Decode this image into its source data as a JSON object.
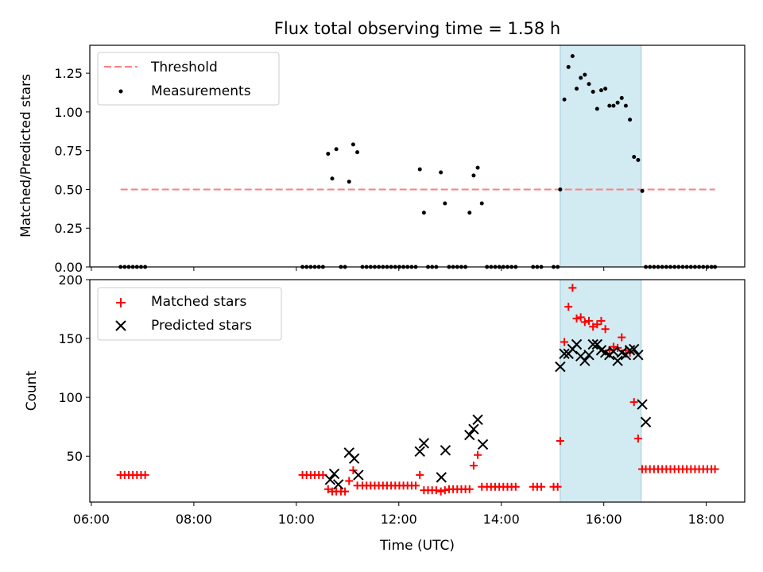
{
  "chart_data": {
    "type": "scatter",
    "title": "Flux total observing time = 1.58 h",
    "xlabel": "Time (UTC)",
    "x_tick_labels": [
      "06:00",
      "08:00",
      "10:00",
      "12:00",
      "14:00",
      "16:00",
      "18:00"
    ],
    "x_ticks_hours": [
      6,
      8,
      10,
      12,
      14,
      16,
      18
    ],
    "xlim_hours": [
      5.97,
      18.75
    ],
    "highlight_span_hours": [
      15.15,
      16.73
    ],
    "colors": {
      "threshold": "#ff7f7f",
      "measurements": "#000000",
      "matched": "#ff0000",
      "predicted": "#000000",
      "span": "#add8e6"
    },
    "top": {
      "ylabel": "Matched/Predicted stars",
      "ylim": [
        0,
        1.43
      ],
      "y_ticks": [
        "0.00",
        "0.25",
        "0.50",
        "0.75",
        "1.00",
        "1.25"
      ],
      "legend": [
        "Threshold",
        "Measurements"
      ],
      "threshold": {
        "value": 0.5,
        "x_range": [
          6.57,
          18.17
        ]
      },
      "measurements_x": [
        6.57,
        6.65,
        6.73,
        6.81,
        6.89,
        6.97,
        7.05,
        10.12,
        10.2,
        10.28,
        10.36,
        10.44,
        10.52,
        10.62,
        10.7,
        10.78,
        10.87,
        10.95,
        11.03,
        11.11,
        11.19,
        11.29,
        11.37,
        11.45,
        11.53,
        11.61,
        11.69,
        11.77,
        11.85,
        11.93,
        12.01,
        12.09,
        12.17,
        12.25,
        12.33,
        12.41,
        12.49,
        12.57,
        12.65,
        12.73,
        12.82,
        12.9,
        12.98,
        13.06,
        13.14,
        13.22,
        13.3,
        13.38,
        13.46,
        13.54,
        13.62,
        13.72,
        13.8,
        13.88,
        13.96,
        14.04,
        14.12,
        14.2,
        14.28,
        14.62,
        14.7,
        14.78,
        15.02,
        15.1,
        15.15,
        15.23,
        15.31,
        15.39,
        15.47,
        15.55,
        15.63,
        15.71,
        15.79,
        15.87,
        15.95,
        16.03,
        16.11,
        16.19,
        16.27,
        16.35,
        16.43,
        16.51,
        16.59,
        16.67,
        16.75,
        16.82,
        16.9,
        16.98,
        17.06,
        17.14,
        17.22,
        17.3,
        17.38,
        17.46,
        17.54,
        17.62,
        17.7,
        17.78,
        17.86,
        17.94,
        18.02,
        18.1,
        18.17
      ],
      "measurements_y": [
        0,
        0,
        0,
        0,
        0,
        0,
        0,
        0,
        0,
        0,
        0,
        0,
        0,
        0.73,
        0.57,
        0.76,
        0,
        0,
        0.55,
        0.79,
        0.74,
        0,
        0,
        0,
        0,
        0,
        0,
        0,
        0,
        0,
        0,
        0,
        0,
        0,
        0,
        0.63,
        0.35,
        0,
        0,
        0,
        0.61,
        0.41,
        0,
        0,
        0,
        0,
        0,
        0.35,
        0.59,
        0.64,
        0.41,
        0,
        0,
        0,
        0,
        0,
        0,
        0,
        0,
        0,
        0,
        0,
        0,
        0,
        0.5,
        1.08,
        1.29,
        1.36,
        1.15,
        1.22,
        1.24,
        1.18,
        1.13,
        1.02,
        1.14,
        1.15,
        1.04,
        1.04,
        1.06,
        1.09,
        1.04,
        0.95,
        0.71,
        0.69,
        0.49,
        0,
        0,
        0,
        0,
        0,
        0,
        0,
        0,
        0,
        0,
        0,
        0,
        0,
        0,
        0,
        0,
        0,
        0
      ]
    },
    "bottom": {
      "ylabel": "Count",
      "ylim": [
        11,
        200
      ],
      "y_ticks": [
        "50",
        "100",
        "150",
        "200"
      ],
      "legend": [
        "Matched stars",
        "Predicted stars"
      ],
      "matched_x": [
        6.57,
        6.65,
        6.73,
        6.81,
        6.89,
        6.97,
        7.05,
        10.12,
        10.2,
        10.28,
        10.36,
        10.44,
        10.52,
        10.62,
        10.7,
        10.78,
        10.87,
        10.95,
        11.03,
        11.11,
        11.19,
        11.29,
        11.37,
        11.45,
        11.53,
        11.61,
        11.69,
        11.77,
        11.85,
        11.93,
        12.01,
        12.09,
        12.17,
        12.25,
        12.33,
        12.41,
        12.49,
        12.57,
        12.65,
        12.73,
        12.82,
        12.9,
        12.98,
        13.06,
        13.14,
        13.22,
        13.3,
        13.38,
        13.46,
        13.54,
        13.62,
        13.72,
        13.8,
        13.88,
        13.96,
        14.04,
        14.12,
        14.2,
        14.28,
        14.62,
        14.7,
        14.78,
        15.02,
        15.1,
        15.15,
        15.23,
        15.31,
        15.39,
        15.47,
        15.55,
        15.63,
        15.71,
        15.79,
        15.87,
        15.95,
        16.03,
        16.11,
        16.19,
        16.27,
        16.35,
        16.43,
        16.51,
        16.59,
        16.67,
        16.75,
        16.82,
        16.9,
        16.98,
        17.06,
        17.14,
        17.22,
        17.3,
        17.38,
        17.46,
        17.54,
        17.62,
        17.7,
        17.78,
        17.86,
        17.94,
        18.02,
        18.1,
        18.17
      ],
      "matched_y": [
        34,
        34,
        34,
        34,
        34,
        34,
        34,
        34,
        34,
        34,
        34,
        34,
        34,
        22,
        20,
        20,
        20,
        20,
        29,
        38,
        25,
        25,
        25,
        25,
        25,
        25,
        25,
        25,
        25,
        25,
        25,
        25,
        25,
        25,
        25,
        34,
        21,
        21,
        21,
        21,
        20,
        21,
        22,
        22,
        22,
        22,
        22,
        22,
        42,
        51,
        24,
        24,
        24,
        24,
        24,
        24,
        24,
        24,
        24,
        24,
        24,
        24,
        24,
        24,
        63,
        147,
        177,
        193,
        167,
        168,
        164,
        165,
        160,
        162,
        165,
        158,
        140,
        143,
        142,
        151,
        140,
        138,
        96,
        65,
        39,
        39,
        39,
        39,
        39,
        39,
        39,
        39,
        39,
        39,
        39,
        39,
        39,
        39,
        39,
        39,
        39,
        39,
        39
      ],
      "predicted_x": [
        10.66,
        10.74,
        10.82,
        11.03,
        11.13,
        11.21,
        12.41,
        12.49,
        12.83,
        12.91,
        13.38,
        13.46,
        13.54,
        13.64,
        15.15,
        15.23,
        15.31,
        15.39,
        15.47,
        15.55,
        15.63,
        15.71,
        15.79,
        15.87,
        15.95,
        16.03,
        16.11,
        16.19,
        16.27,
        16.35,
        16.43,
        16.51,
        16.59,
        16.67,
        16.75,
        16.82
      ],
      "predicted_y": [
        30,
        35,
        26,
        53,
        48,
        34,
        54,
        61,
        32,
        55,
        68,
        73,
        81,
        60,
        126,
        137,
        137,
        141,
        145,
        135,
        131,
        136,
        145,
        145,
        140,
        138,
        136,
        139,
        131,
        138,
        136,
        140,
        141,
        136,
        94,
        79
      ]
    }
  }
}
